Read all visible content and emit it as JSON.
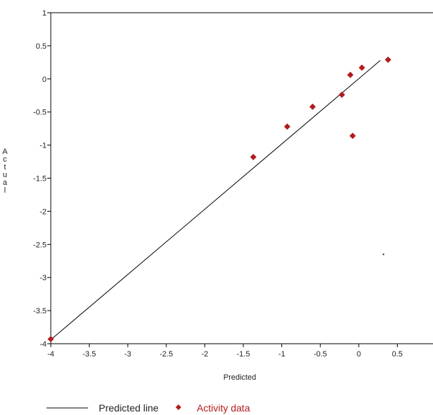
{
  "chart_data": {
    "type": "scatter",
    "xlabel": "Predicted",
    "ylabel": "Actual",
    "xlim": [
      -4,
      0.9
    ],
    "ylim": [
      -4,
      1
    ],
    "x_ticks": [
      -4,
      -3.5,
      -3,
      -2.5,
      -2,
      -1.5,
      -1,
      -0.5,
      0,
      0.5
    ],
    "y_ticks": [
      1,
      0.5,
      0,
      -0.5,
      -1,
      -1.5,
      -2,
      -2.5,
      -3,
      -3.5,
      -4
    ],
    "x_tick_labels": [
      "-4",
      "-3.5",
      "-3",
      "-2.5",
      "-2",
      "-1.5",
      "-1",
      "-0.5",
      "0",
      "0.5"
    ],
    "y_tick_labels": [
      "1",
      "0.5",
      "0",
      "-0.5",
      "-1",
      "-1.5",
      "-2",
      "-2.5",
      "-3",
      "-3.5",
      "-4"
    ],
    "series": [
      {
        "name": "Predicted line",
        "kind": "line",
        "color": "#000000",
        "x": [
          -4,
          0.28
        ],
        "y": [
          -3.94,
          0.28
        ]
      },
      {
        "name": "Activity data",
        "kind": "scatter",
        "marker": "diamond",
        "color": "#b01c1c",
        "x": [
          -4.0,
          -1.37,
          -0.93,
          -0.6,
          -0.22,
          -0.11,
          -0.08,
          0.04,
          0.38
        ],
        "y": [
          -3.93,
          -1.18,
          -0.72,
          -0.42,
          -0.24,
          0.06,
          -0.86,
          0.17,
          0.29
        ]
      }
    ],
    "stray_point": {
      "x": 0.32,
      "y": -2.65
    },
    "grid": false,
    "legend_position": "bottom"
  },
  "legend": {
    "line_label": "Predicted line",
    "marker_label": "Activity data",
    "marker_color": "#b01c1c",
    "line_color": "#000000"
  }
}
